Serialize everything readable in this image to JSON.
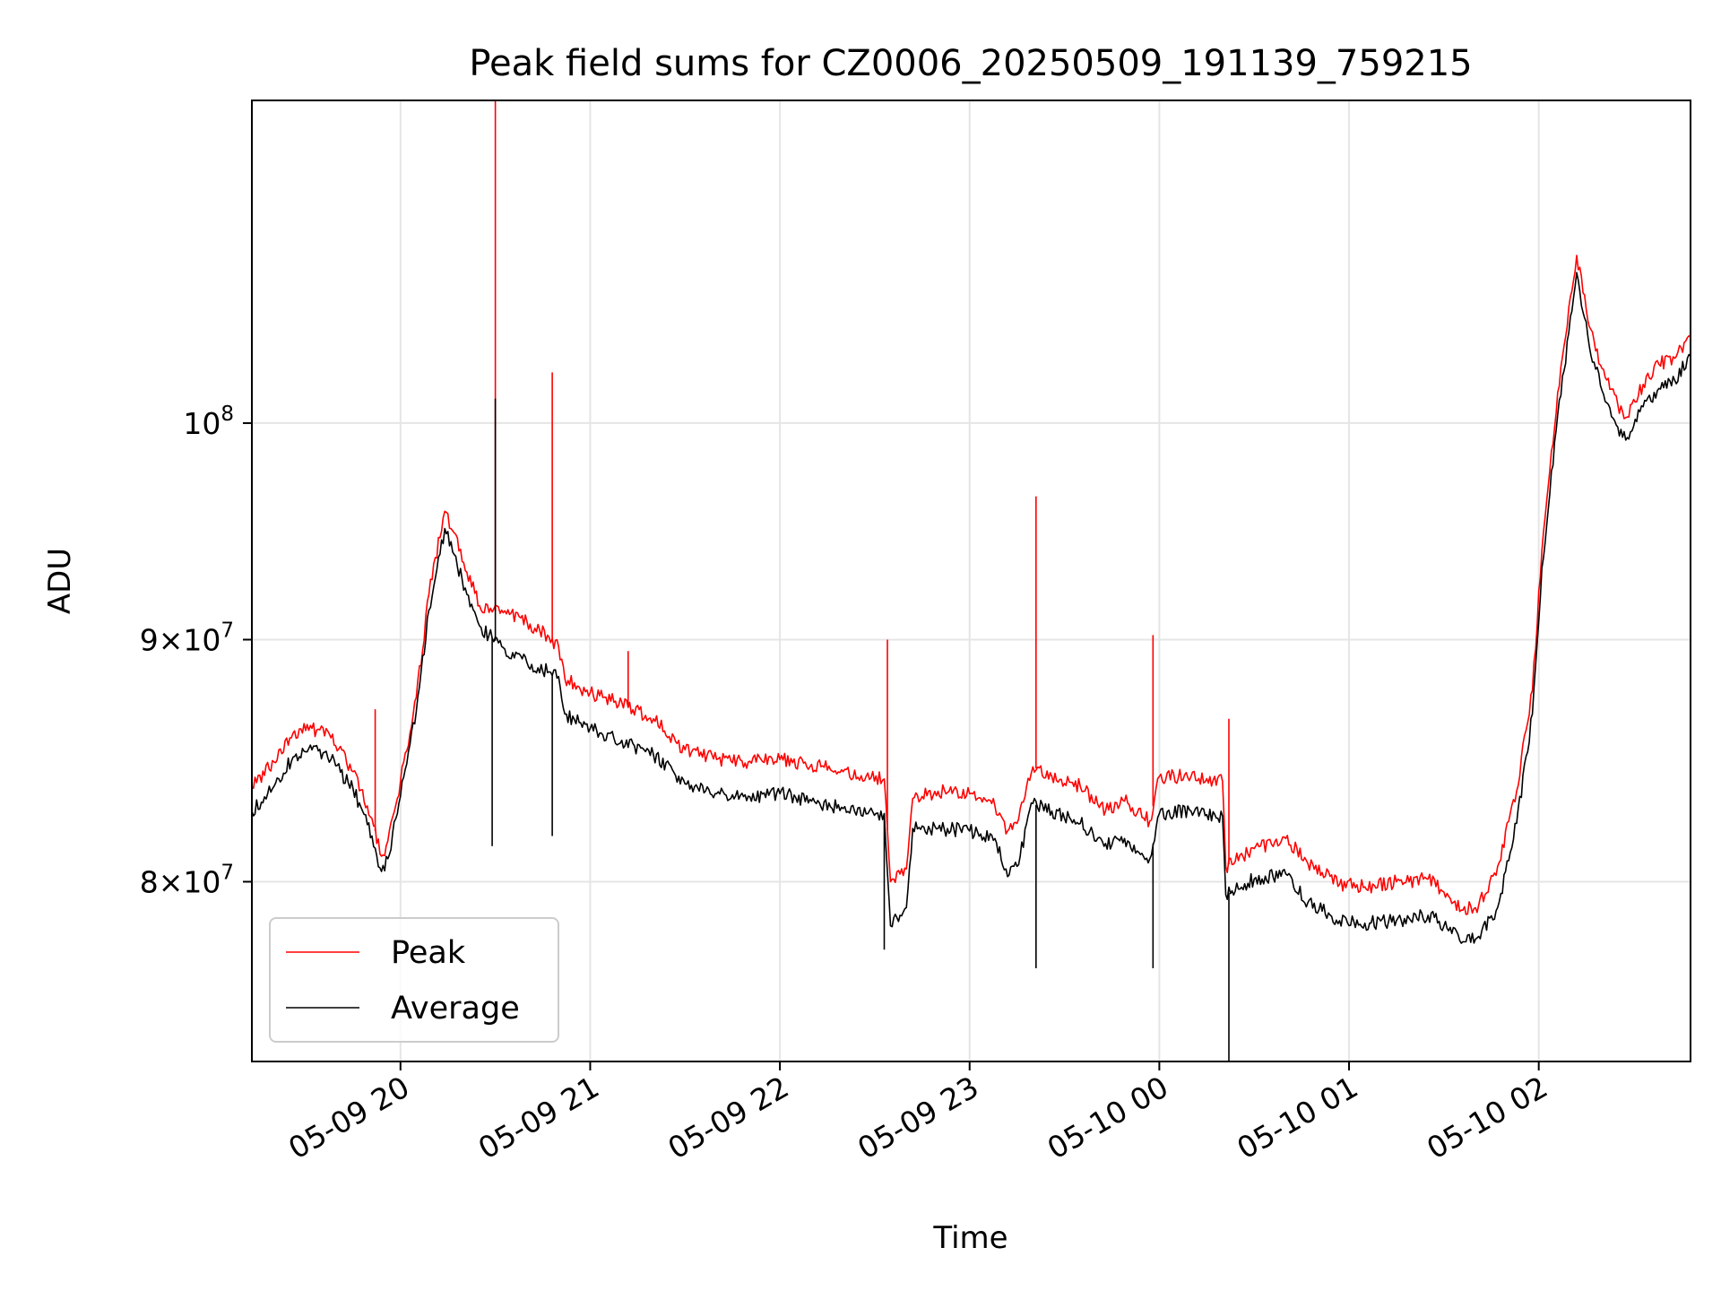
{
  "chart_data": {
    "type": "line",
    "title": "Peak field sums for CZ0006_20250509_191139_759215",
    "xlabel": "Time",
    "ylabel": "ADU",
    "y_scale": "log",
    "grid": true,
    "legend_position": "lower-left",
    "xlim": [
      "2025-05-09 19:13",
      "2025-05-10 02:48"
    ],
    "ylim": [
      73300000,
      117000000
    ],
    "x_ticks": [
      {
        "t": "2025-05-09 20:00",
        "label": "05-09 20"
      },
      {
        "t": "2025-05-09 21:00",
        "label": "05-09 21"
      },
      {
        "t": "2025-05-09 22:00",
        "label": "05-09 22"
      },
      {
        "t": "2025-05-09 23:00",
        "label": "05-09 23"
      },
      {
        "t": "2025-05-10 00:00",
        "label": "05-10 00"
      },
      {
        "t": "2025-05-10 01:00",
        "label": "05-10 01"
      },
      {
        "t": "2025-05-10 02:00",
        "label": "05-10 02"
      }
    ],
    "y_ticks": [
      {
        "value": 80000000,
        "base": "8",
        "exp": "7"
      },
      {
        "value": 90000000,
        "base": "9",
        "exp": "7"
      },
      {
        "value": 100000000,
        "base": "10",
        "exp": "8"
      }
    ],
    "series": [
      {
        "name": "Peak",
        "color": "#ff0000",
        "points": [
          [
            "2025-05-09 19:13",
            83800000
          ],
          [
            "2025-05-09 19:20",
            84800000
          ],
          [
            "2025-05-09 19:26",
            86000000
          ],
          [
            "2025-05-09 19:32",
            86200000
          ],
          [
            "2025-05-09 19:38",
            85800000
          ],
          [
            "2025-05-09 19:45",
            84400000
          ],
          [
            "2025-05-09 19:51",
            82500000
          ],
          [
            "2025-05-09 19:54",
            81000000
          ],
          [
            "2025-05-09 19:56",
            81600000
          ],
          [
            "2025-05-09 20:00",
            84000000
          ],
          [
            "2025-05-09 20:05",
            87500000
          ],
          [
            "2025-05-09 20:09",
            92000000
          ],
          [
            "2025-05-09 20:14",
            95800000
          ],
          [
            "2025-05-09 20:17",
            94800000
          ],
          [
            "2025-05-09 20:21",
            93000000
          ],
          [
            "2025-05-09 20:25",
            91500000
          ],
          [
            "2025-05-09 20:28",
            91200000
          ],
          [
            "2025-05-09 20:32",
            91300000
          ],
          [
            "2025-05-09 20:40",
            90800000
          ],
          [
            "2025-05-09 20:47",
            90100000
          ],
          [
            "2025-05-09 20:50",
            89700000
          ],
          [
            "2025-05-09 20:52",
            88300000
          ],
          [
            "2025-05-09 21:00",
            87700000
          ],
          [
            "2025-05-09 21:10",
            87300000
          ],
          [
            "2025-05-09 21:20",
            86600000
          ],
          [
            "2025-05-09 21:30",
            85300000
          ],
          [
            "2025-05-09 21:40",
            84900000
          ],
          [
            "2025-05-09 21:50",
            84800000
          ],
          [
            "2025-05-09 22:00",
            84900000
          ],
          [
            "2025-05-09 22:10",
            84700000
          ],
          [
            "2025-05-09 22:20",
            84400000
          ],
          [
            "2025-05-09 22:33",
            84100000
          ],
          [
            "2025-05-09 22:35",
            80000000
          ],
          [
            "2025-05-09 22:38",
            80300000
          ],
          [
            "2025-05-09 22:40",
            80500000
          ],
          [
            "2025-05-09 22:42",
            83300000
          ],
          [
            "2025-05-09 22:50",
            83600000
          ],
          [
            "2025-05-09 23:00",
            83500000
          ],
          [
            "2025-05-09 23:08",
            83000000
          ],
          [
            "2025-05-09 23:12",
            82000000
          ],
          [
            "2025-05-09 23:15",
            82300000
          ],
          [
            "2025-05-09 23:20",
            84600000
          ],
          [
            "2025-05-09 23:26",
            84200000
          ],
          [
            "2025-05-09 23:35",
            83800000
          ],
          [
            "2025-05-09 23:43",
            82800000
          ],
          [
            "2025-05-09 23:49",
            83200000
          ],
          [
            "2025-05-09 23:57",
            82400000
          ],
          [
            "2025-05-10 00:00",
            84200000
          ],
          [
            "2025-05-10 00:10",
            84200000
          ],
          [
            "2025-05-10 00:20",
            84000000
          ],
          [
            "2025-05-10 00:21",
            80600000
          ],
          [
            "2025-05-10 00:30",
            81300000
          ],
          [
            "2025-05-10 00:40",
            81700000
          ],
          [
            "2025-05-10 00:47",
            80700000
          ],
          [
            "2025-05-10 00:57",
            79900000
          ],
          [
            "2025-05-10 01:05",
            79800000
          ],
          [
            "2025-05-10 01:15",
            80000000
          ],
          [
            "2025-05-10 01:25",
            80100000
          ],
          [
            "2025-05-10 01:30",
            79600000
          ],
          [
            "2025-05-10 01:36",
            78900000
          ],
          [
            "2025-05-10 01:41",
            79100000
          ],
          [
            "2025-05-10 01:47",
            80600000
          ],
          [
            "2025-05-10 01:53",
            83600000
          ],
          [
            "2025-05-10 01:58",
            87800000
          ],
          [
            "2025-05-10 02:01",
            94000000
          ],
          [
            "2025-05-10 02:06",
            101500000
          ],
          [
            "2025-05-10 02:11",
            107200000
          ],
          [
            "2025-05-10 02:12",
            108500000
          ],
          [
            "2025-05-10 02:16",
            104800000
          ],
          [
            "2025-05-10 02:20",
            102700000
          ],
          [
            "2025-05-10 02:25",
            100900000
          ],
          [
            "2025-05-10 02:28",
            100300000
          ],
          [
            "2025-05-10 02:33",
            101900000
          ],
          [
            "2025-05-10 02:38",
            102900000
          ],
          [
            "2025-05-10 02:43",
            103200000
          ],
          [
            "2025-05-10 02:48",
            104300000
          ]
        ]
      },
      {
        "name": "Average",
        "color": "#000000",
        "points": [
          [
            "2025-05-09 19:13",
            82800000
          ],
          [
            "2025-05-09 19:20",
            83800000
          ],
          [
            "2025-05-09 19:26",
            85000000
          ],
          [
            "2025-05-09 19:32",
            85300000
          ],
          [
            "2025-05-09 19:38",
            84900000
          ],
          [
            "2025-05-09 19:45",
            83700000
          ],
          [
            "2025-05-09 19:51",
            81800000
          ],
          [
            "2025-05-09 19:54",
            80400000
          ],
          [
            "2025-05-09 19:56",
            80900000
          ],
          [
            "2025-05-09 20:00",
            83400000
          ],
          [
            "2025-05-09 20:05",
            86900000
          ],
          [
            "2025-05-09 20:09",
            91300000
          ],
          [
            "2025-05-09 20:14",
            95000000
          ],
          [
            "2025-05-09 20:17",
            93800000
          ],
          [
            "2025-05-09 20:21",
            92000000
          ],
          [
            "2025-05-09 20:25",
            90600000
          ],
          [
            "2025-05-09 20:28",
            90200000
          ],
          [
            "2025-05-09 20:32",
            89700000
          ],
          [
            "2025-05-09 20:40",
            89000000
          ],
          [
            "2025-05-09 20:47",
            88600000
          ],
          [
            "2025-05-09 20:50",
            88400000
          ],
          [
            "2025-05-09 20:52",
            86800000
          ],
          [
            "2025-05-09 21:00",
            86200000
          ],
          [
            "2025-05-09 21:10",
            85700000
          ],
          [
            "2025-05-09 21:20",
            85100000
          ],
          [
            "2025-05-09 21:30",
            83900000
          ],
          [
            "2025-05-09 21:40",
            83500000
          ],
          [
            "2025-05-09 21:50",
            83400000
          ],
          [
            "2025-05-09 22:00",
            83500000
          ],
          [
            "2025-05-09 22:10",
            83200000
          ],
          [
            "2025-05-09 22:20",
            82900000
          ],
          [
            "2025-05-09 22:33",
            82700000
          ],
          [
            "2025-05-09 22:35",
            78300000
          ],
          [
            "2025-05-09 22:38",
            78700000
          ],
          [
            "2025-05-09 22:40",
            79000000
          ],
          [
            "2025-05-09 22:42",
            82100000
          ],
          [
            "2025-05-09 22:50",
            82100000
          ],
          [
            "2025-05-09 23:00",
            82000000
          ],
          [
            "2025-05-09 23:08",
            81700000
          ],
          [
            "2025-05-09 23:12",
            80200000
          ],
          [
            "2025-05-09 23:15",
            80600000
          ],
          [
            "2025-05-09 23:20",
            83100000
          ],
          [
            "2025-05-09 23:26",
            82800000
          ],
          [
            "2025-05-09 23:35",
            82300000
          ],
          [
            "2025-05-09 23:43",
            81500000
          ],
          [
            "2025-05-09 23:49",
            81700000
          ],
          [
            "2025-05-09 23:57",
            80900000
          ],
          [
            "2025-05-10 00:00",
            82700000
          ],
          [
            "2025-05-10 00:10",
            82800000
          ],
          [
            "2025-05-10 00:20",
            82600000
          ],
          [
            "2025-05-10 00:21",
            79500000
          ],
          [
            "2025-05-10 00:30",
            80100000
          ],
          [
            "2025-05-10 00:40",
            80300000
          ],
          [
            "2025-05-10 00:47",
            79200000
          ],
          [
            "2025-05-10 00:57",
            78500000
          ],
          [
            "2025-05-10 01:05",
            78400000
          ],
          [
            "2025-05-10 01:15",
            78500000
          ],
          [
            "2025-05-10 01:25",
            78700000
          ],
          [
            "2025-05-10 01:30",
            78300000
          ],
          [
            "2025-05-10 01:36",
            77700000
          ],
          [
            "2025-05-10 01:41",
            77900000
          ],
          [
            "2025-05-10 01:47",
            79000000
          ],
          [
            "2025-05-10 01:53",
            82300000
          ],
          [
            "2025-05-10 01:58",
            86800000
          ],
          [
            "2025-05-10 02:01",
            93200000
          ],
          [
            "2025-05-10 02:06",
            100400000
          ],
          [
            "2025-05-10 02:11",
            106300000
          ],
          [
            "2025-05-10 02:12",
            107600000
          ],
          [
            "2025-05-10 02:16",
            103800000
          ],
          [
            "2025-05-10 02:20",
            101600000
          ],
          [
            "2025-05-10 02:25",
            99800000
          ],
          [
            "2025-05-10 02:28",
            99300000
          ],
          [
            "2025-05-10 02:33",
            100800000
          ],
          [
            "2025-05-10 02:38",
            101700000
          ],
          [
            "2025-05-10 02:43",
            102100000
          ],
          [
            "2025-05-10 02:48",
            103300000
          ]
        ]
      }
    ],
    "spikes": [
      {
        "series": "Peak",
        "t": "2025-05-09 19:52",
        "value": 87000000
      },
      {
        "series": "Peak",
        "t": "2025-05-09 20:30",
        "value": 117000000
      },
      {
        "series": "Peak",
        "t": "2025-05-09 20:48",
        "value": 102500000
      },
      {
        "series": "Peak",
        "t": "2025-05-09 21:12",
        "value": 89500000
      },
      {
        "series": "Peak",
        "t": "2025-05-09 22:34",
        "value": 90000000
      },
      {
        "series": "Peak",
        "t": "2025-05-09 23:21",
        "value": 96500000
      },
      {
        "series": "Peak",
        "t": "2025-05-09 23:58",
        "value": 90200000
      },
      {
        "series": "Peak",
        "t": "2025-05-10 00:22",
        "value": 86600000
      },
      {
        "series": "Average",
        "t": "2025-05-09 20:29",
        "value": 81400000
      },
      {
        "series": "Average",
        "t": "2025-05-09 20:30",
        "value": 101200000
      },
      {
        "series": "Average",
        "t": "2025-05-09 20:48",
        "value": 81800000
      },
      {
        "series": "Average",
        "t": "2025-05-09 22:33",
        "value": 77400000
      },
      {
        "series": "Average",
        "t": "2025-05-09 23:21",
        "value": 76700000
      },
      {
        "series": "Average",
        "t": "2025-05-09 23:58",
        "value": 76700000
      },
      {
        "series": "Average",
        "t": "2025-05-10 00:22",
        "value": 73300000
      }
    ]
  }
}
